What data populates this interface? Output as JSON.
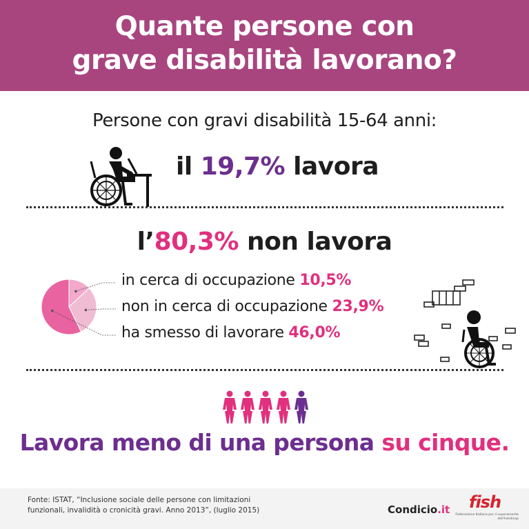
{
  "header": {
    "title_line1": "Quante persone con",
    "title_line2": "grave disabilità lavorano?"
  },
  "subtitle": "Persone con gravi disabilità 15-64 anni:",
  "working": {
    "prefix": "il ",
    "value": "19,7%",
    "suffix": " lavora"
  },
  "not_working": {
    "prefix": "l’",
    "value": "80,3%",
    "suffix": " non lavora"
  },
  "chart_data": {
    "type": "pie",
    "categories": [
      "in cerca di occupazione",
      "non in cerca di occupazione",
      "ha smesso di lavorare"
    ],
    "values": [
      10.5,
      23.9,
      46.0
    ],
    "value_labels": [
      "10,5",
      "23,9",
      "46,0"
    ],
    "unit": "%",
    "colors": [
      "#f3a8cc",
      "#f0bcd3",
      "#e8639f"
    ]
  },
  "people_icons": {
    "count": 5,
    "colors": [
      "#e0307e",
      "#e0307e",
      "#e0307e",
      "#e0307e",
      "#6c2e8f"
    ]
  },
  "conclusion": {
    "part1": "Lavora meno di una persona ",
    "part2": "su cinque."
  },
  "footer": {
    "source_line1": "Fonte: ISTAT, “Inclusione sociale delle persone con limitazioni",
    "source_line2": "funzionali, invalidità o cronicità gravi. Anno 2013”, (luglio 2015)",
    "brand_name": "Condicio",
    "brand_tld": ".it",
    "fish_logo_text": "fish",
    "fish_caption": "Federazione Italiana per il superamento dell'handicap"
  },
  "colors": {
    "header_bg": "#a8457f",
    "accent_purple": "#6c2e8f",
    "accent_pink": "#e0307e",
    "text_dark": "#1e1e1e",
    "footer_bg": "#f3f3f3",
    "fish_red": "#d6232e"
  },
  "icons": [
    "wheelchair-desk-icon",
    "wheelchair-bricks-icon",
    "person-icon",
    "fish-logo"
  ]
}
